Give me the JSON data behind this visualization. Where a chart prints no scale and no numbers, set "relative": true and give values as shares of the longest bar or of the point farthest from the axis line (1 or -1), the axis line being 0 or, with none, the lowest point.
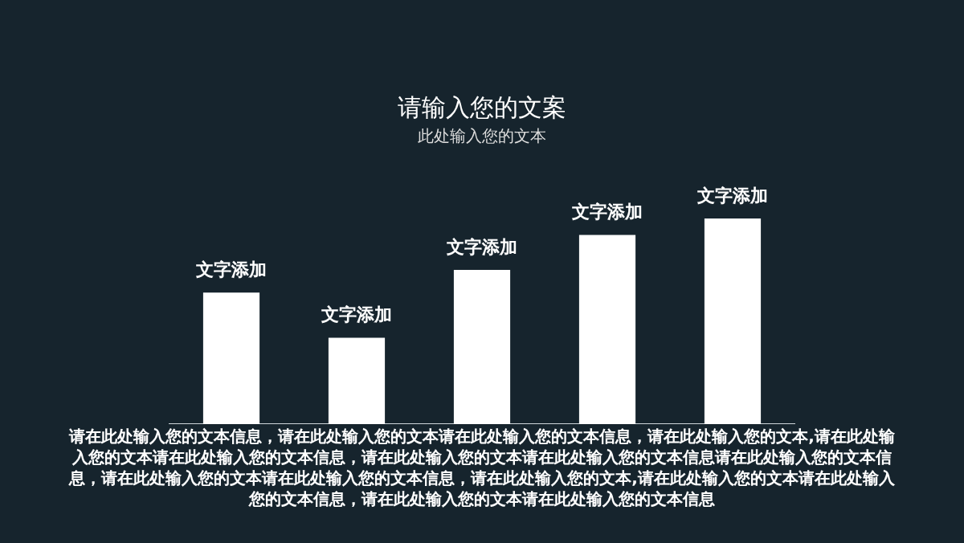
{
  "chart_data": {
    "type": "bar",
    "title": "请输入您的文案",
    "subtitle": "此处输入您的文本",
    "categories": [
      "文字添加",
      "文字添加",
      "文字添加",
      "文字添加",
      "文字添加"
    ],
    "values": [
      0.64,
      0.42,
      0.75,
      0.92,
      1
    ],
    "color": "#ffffff",
    "relative": true,
    "legend": false,
    "annotations": [
      "请在此处输入您的文本信息，请在此处输入您的文本请在此处输入您的文本信息，请在此处输入您的文本,请在此处输入您的文本请在此处输入您的文本信息，请在此处输入您的文本请在此处输入您的文本信息请在此处输入您的文本信息，请在此处输入您的文本请在此处输入您的文本信息，请在此处输入您的文本,请在此处输入您的文本请在此处输入您的文本信息，请在此处输入您的文本请在此处输入您的文本信息"
    ]
  }
}
